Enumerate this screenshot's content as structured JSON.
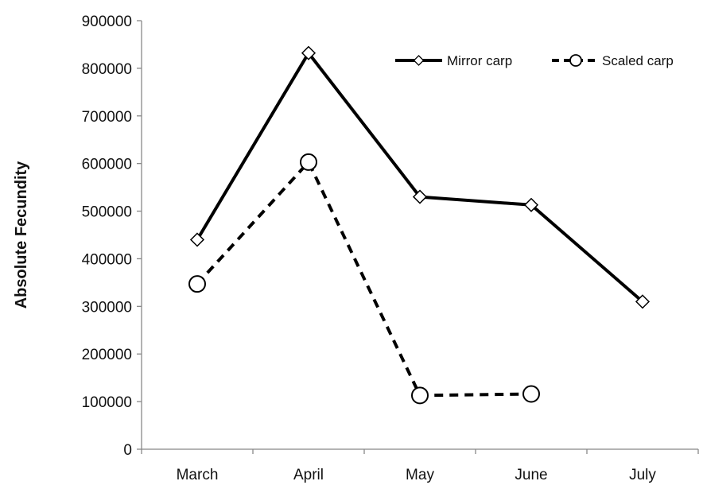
{
  "chart_data": {
    "type": "line",
    "title": "",
    "xlabel": "",
    "ylabel": "Absolute Fecundity",
    "categories": [
      "March",
      "April",
      "May",
      "June",
      "July"
    ],
    "ylim": [
      0,
      900000
    ],
    "yticks": [
      "0",
      "100000",
      "200000",
      "300000",
      "400000",
      "500000",
      "600000",
      "700000",
      "800000",
      "900000"
    ],
    "grid": false,
    "legend_position": "top-right",
    "series": [
      {
        "name": "Mirror carp",
        "values": [
          440000,
          832000,
          530000,
          513000,
          310000
        ],
        "style": "solid",
        "marker": "diamond",
        "color": "#000000"
      },
      {
        "name": "Scaled carp",
        "values": [
          347000,
          603000,
          113000,
          116000,
          null
        ],
        "style": "dashed",
        "marker": "circle",
        "color": "#000000"
      }
    ]
  }
}
